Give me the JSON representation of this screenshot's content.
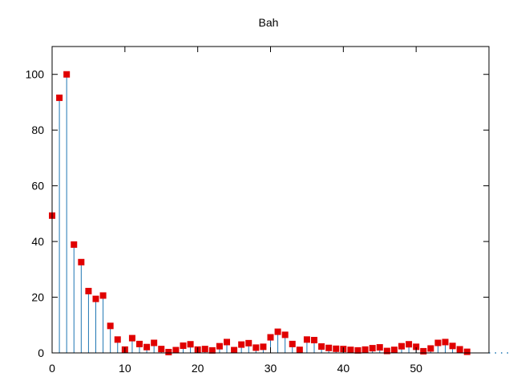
{
  "chart_data": {
    "type": "stem",
    "title": "Bah",
    "xlabel": "",
    "ylabel": "",
    "xlim": [
      0,
      60
    ],
    "ylim": [
      0,
      110
    ],
    "x_ticks": [
      0,
      10,
      20,
      30,
      40,
      50
    ],
    "y_ticks": [
      0,
      20,
      40,
      60,
      80,
      100
    ],
    "grid": false,
    "legend": "none",
    "x": [
      0,
      1,
      2,
      3,
      4,
      5,
      6,
      7,
      8,
      9,
      10,
      11,
      12,
      13,
      14,
      15,
      16,
      17,
      18,
      19,
      20,
      21,
      22,
      23,
      24,
      25,
      26,
      27,
      28,
      29,
      30,
      31,
      32,
      33,
      34,
      35,
      36,
      37,
      38,
      39,
      40,
      41,
      42,
      43,
      44,
      45,
      46,
      47,
      48,
      49,
      50,
      51,
      52,
      53,
      54,
      55,
      56,
      57
    ],
    "values": [
      49.3,
      91.6,
      100,
      38.9,
      32.6,
      22.2,
      19.4,
      20.6,
      9.7,
      4.8,
      1.2,
      5.3,
      3.2,
      2.1,
      3.6,
      1.4,
      0.3,
      1.0,
      2.6,
      3.1,
      1.2,
      1.4,
      0.9,
      2.4,
      3.9,
      1.0,
      3.0,
      3.5,
      1.9,
      2.2,
      5.6,
      7.6,
      6.5,
      3.2,
      1.1,
      4.8,
      4.6,
      2.3,
      1.8,
      1.5,
      1.4,
      1.1,
      0.9,
      1.2,
      1.7,
      2.0,
      0.7,
      1.1,
      2.4,
      3.1,
      2.2,
      0.6,
      1.6,
      3.6,
      3.9,
      2.5,
      1.3,
      0.4
    ],
    "stem_color": "#1f77b4",
    "marker_color": "#e00000",
    "axis_color": "#000000"
  }
}
